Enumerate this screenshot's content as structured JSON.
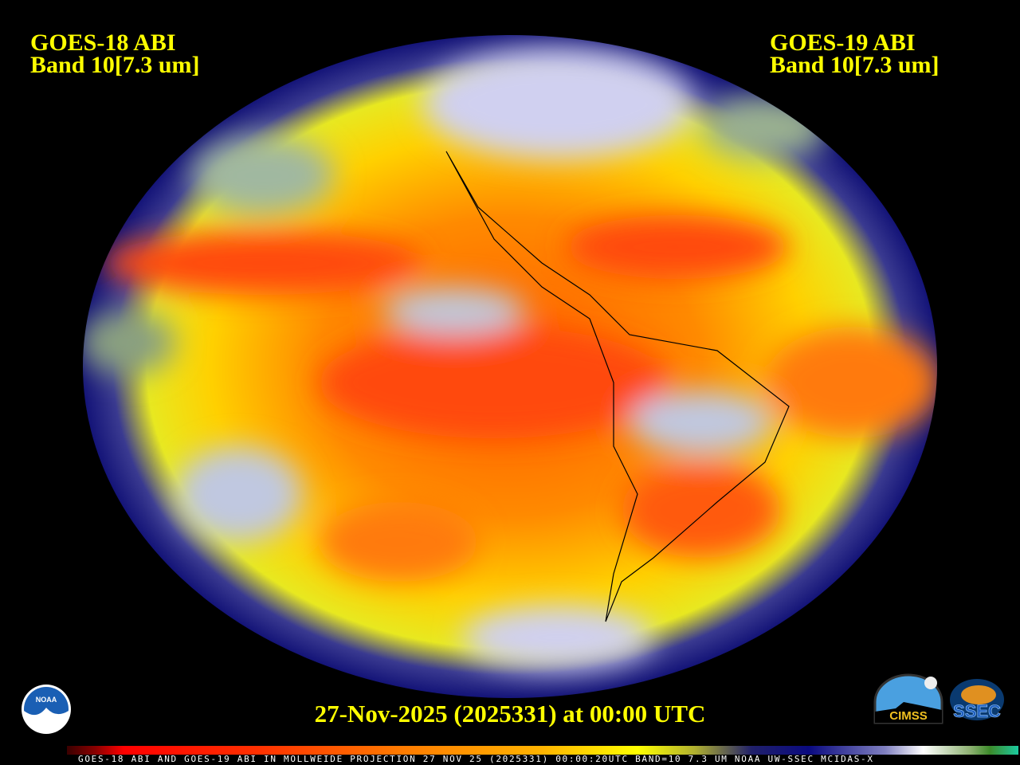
{
  "header": {
    "left_title": [
      "GOES-18 ABI",
      "Band 10[7.3 um]"
    ],
    "right_title": [
      "GOES-19 ABI",
      "Band 10[7.3 um]"
    ]
  },
  "date_label": "27-Nov-2025 (2025331) at 00:00 UTC",
  "footer_text": "GOES-18 ABI AND GOES-19 ABI IN MOLLWEIDE PROJECTION 27 NOV 25 (2025331) 00:00:20UTC BAND=10 7.3 UM NOAA UW-SSEC MCIDAS-X",
  "map": {
    "projection": "Mollweide",
    "product": "water vapor imagery"
  },
  "logos": {
    "noaa": "NOAA",
    "cimss": "CIMSS",
    "ssec": "SSEC"
  },
  "colors": {
    "title": "#ffff00",
    "footer": "#ffffff",
    "background": "#000000"
  }
}
